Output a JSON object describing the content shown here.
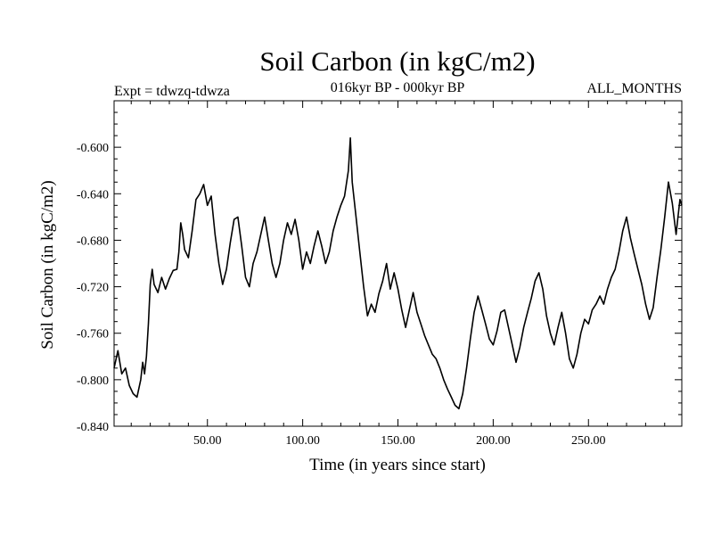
{
  "chart_data": {
    "type": "line",
    "title": "Soil Carbon (in kgC/m2)",
    "subtitle": "016kyr BP - 000kyr BP",
    "experiment_label": "Expt = tdwzq-tdwza",
    "months_label": "ALL_MONTHS",
    "xlabel": "Time (in years since start)",
    "ylabel": "Soil Carbon (in kgC/m2)",
    "xlim": [
      1,
      299
    ],
    "ylim": [
      -0.84,
      -0.56
    ],
    "x_ticks": [
      {
        "value": 50,
        "label": "50.00"
      },
      {
        "value": 100,
        "label": "100.00"
      },
      {
        "value": 150,
        "label": "150.00"
      },
      {
        "value": 200,
        "label": "200.00"
      },
      {
        "value": 250,
        "label": "250.00"
      }
    ],
    "y_ticks": [
      {
        "value": -0.6,
        "label": "-0.600"
      },
      {
        "value": -0.64,
        "label": "-0.640"
      },
      {
        "value": -0.68,
        "label": "-0.680"
      },
      {
        "value": -0.72,
        "label": "-0.720"
      },
      {
        "value": -0.76,
        "label": "-0.760"
      },
      {
        "value": -0.8,
        "label": "-0.800"
      },
      {
        "value": -0.84,
        "label": "-0.840"
      }
    ],
    "grid": false,
    "series": [
      {
        "color": "#000000",
        "points": [
          [
            1,
            -0.79
          ],
          [
            3,
            -0.775
          ],
          [
            5,
            -0.795
          ],
          [
            7,
            -0.79
          ],
          [
            9,
            -0.805
          ],
          [
            11,
            -0.812
          ],
          [
            13,
            -0.815
          ],
          [
            15,
            -0.8
          ],
          [
            16,
            -0.785
          ],
          [
            17,
            -0.795
          ],
          [
            18,
            -0.78
          ],
          [
            19,
            -0.752
          ],
          [
            20,
            -0.718
          ],
          [
            21,
            -0.705
          ],
          [
            22,
            -0.718
          ],
          [
            24,
            -0.725
          ],
          [
            26,
            -0.712
          ],
          [
            28,
            -0.722
          ],
          [
            30,
            -0.713
          ],
          [
            32,
            -0.706
          ],
          [
            34,
            -0.705
          ],
          [
            35,
            -0.69
          ],
          [
            36,
            -0.665
          ],
          [
            37,
            -0.675
          ],
          [
            38,
            -0.688
          ],
          [
            40,
            -0.695
          ],
          [
            42,
            -0.672
          ],
          [
            44,
            -0.645
          ],
          [
            46,
            -0.64
          ],
          [
            48,
            -0.632
          ],
          [
            50,
            -0.65
          ],
          [
            52,
            -0.642
          ],
          [
            54,
            -0.675
          ],
          [
            56,
            -0.7
          ],
          [
            58,
            -0.718
          ],
          [
            60,
            -0.705
          ],
          [
            62,
            -0.682
          ],
          [
            64,
            -0.662
          ],
          [
            66,
            -0.66
          ],
          [
            68,
            -0.685
          ],
          [
            70,
            -0.712
          ],
          [
            72,
            -0.72
          ],
          [
            74,
            -0.7
          ],
          [
            76,
            -0.69
          ],
          [
            78,
            -0.675
          ],
          [
            80,
            -0.66
          ],
          [
            82,
            -0.68
          ],
          [
            84,
            -0.7
          ],
          [
            86,
            -0.712
          ],
          [
            88,
            -0.7
          ],
          [
            90,
            -0.68
          ],
          [
            92,
            -0.665
          ],
          [
            94,
            -0.675
          ],
          [
            96,
            -0.662
          ],
          [
            98,
            -0.68
          ],
          [
            100,
            -0.705
          ],
          [
            102,
            -0.69
          ],
          [
            104,
            -0.7
          ],
          [
            106,
            -0.685
          ],
          [
            108,
            -0.672
          ],
          [
            110,
            -0.685
          ],
          [
            112,
            -0.7
          ],
          [
            114,
            -0.69
          ],
          [
            116,
            -0.672
          ],
          [
            118,
            -0.66
          ],
          [
            120,
            -0.65
          ],
          [
            122,
            -0.642
          ],
          [
            124,
            -0.62
          ],
          [
            125,
            -0.592
          ],
          [
            126,
            -0.63
          ],
          [
            128,
            -0.66
          ],
          [
            130,
            -0.69
          ],
          [
            132,
            -0.72
          ],
          [
            134,
            -0.745
          ],
          [
            136,
            -0.735
          ],
          [
            138,
            -0.742
          ],
          [
            140,
            -0.726
          ],
          [
            142,
            -0.715
          ],
          [
            144,
            -0.7
          ],
          [
            146,
            -0.722
          ],
          [
            148,
            -0.708
          ],
          [
            150,
            -0.722
          ],
          [
            152,
            -0.74
          ],
          [
            154,
            -0.755
          ],
          [
            156,
            -0.74
          ],
          [
            158,
            -0.725
          ],
          [
            160,
            -0.742
          ],
          [
            162,
            -0.752
          ],
          [
            164,
            -0.762
          ],
          [
            166,
            -0.77
          ],
          [
            168,
            -0.778
          ],
          [
            170,
            -0.782
          ],
          [
            172,
            -0.79
          ],
          [
            174,
            -0.8
          ],
          [
            176,
            -0.808
          ],
          [
            178,
            -0.815
          ],
          [
            180,
            -0.822
          ],
          [
            182,
            -0.825
          ],
          [
            184,
            -0.812
          ],
          [
            186,
            -0.79
          ],
          [
            188,
            -0.765
          ],
          [
            190,
            -0.742
          ],
          [
            192,
            -0.728
          ],
          [
            194,
            -0.74
          ],
          [
            196,
            -0.752
          ],
          [
            198,
            -0.765
          ],
          [
            200,
            -0.77
          ],
          [
            202,
            -0.758
          ],
          [
            204,
            -0.742
          ],
          [
            206,
            -0.74
          ],
          [
            208,
            -0.755
          ],
          [
            210,
            -0.77
          ],
          [
            212,
            -0.785
          ],
          [
            214,
            -0.772
          ],
          [
            216,
            -0.755
          ],
          [
            218,
            -0.742
          ],
          [
            220,
            -0.73
          ],
          [
            222,
            -0.715
          ],
          [
            224,
            -0.708
          ],
          [
            226,
            -0.722
          ],
          [
            228,
            -0.745
          ],
          [
            230,
            -0.76
          ],
          [
            232,
            -0.77
          ],
          [
            234,
            -0.755
          ],
          [
            236,
            -0.742
          ],
          [
            238,
            -0.76
          ],
          [
            240,
            -0.782
          ],
          [
            242,
            -0.79
          ],
          [
            244,
            -0.778
          ],
          [
            246,
            -0.76
          ],
          [
            248,
            -0.748
          ],
          [
            250,
            -0.752
          ],
          [
            252,
            -0.74
          ],
          [
            254,
            -0.735
          ],
          [
            256,
            -0.728
          ],
          [
            258,
            -0.735
          ],
          [
            260,
            -0.722
          ],
          [
            262,
            -0.712
          ],
          [
            264,
            -0.705
          ],
          [
            266,
            -0.69
          ],
          [
            268,
            -0.672
          ],
          [
            270,
            -0.66
          ],
          [
            272,
            -0.678
          ],
          [
            274,
            -0.692
          ],
          [
            276,
            -0.705
          ],
          [
            278,
            -0.718
          ],
          [
            280,
            -0.735
          ],
          [
            282,
            -0.748
          ],
          [
            284,
            -0.738
          ],
          [
            286,
            -0.712
          ],
          [
            288,
            -0.688
          ],
          [
            290,
            -0.66
          ],
          [
            292,
            -0.63
          ],
          [
            294,
            -0.648
          ],
          [
            296,
            -0.675
          ],
          [
            297,
            -0.66
          ],
          [
            298,
            -0.645
          ],
          [
            299,
            -0.65
          ]
        ]
      }
    ]
  }
}
